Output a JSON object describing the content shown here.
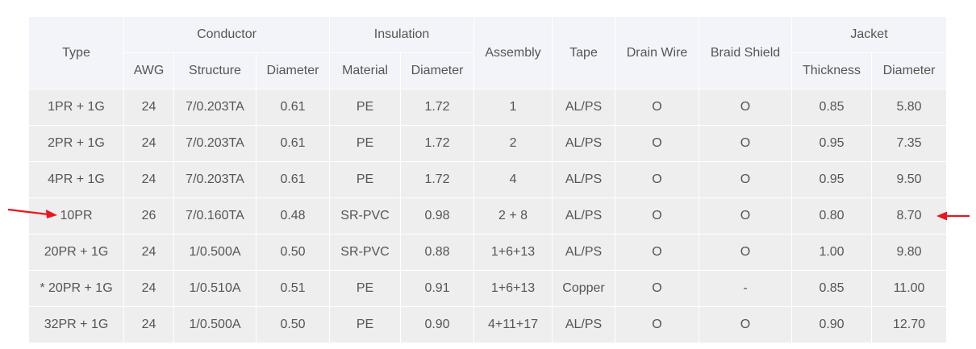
{
  "header": {
    "type": "Type",
    "conductor": "Conductor",
    "insulation": "Insulation",
    "assembly": "Assembly",
    "tape": "Tape",
    "drain_wire": "Drain Wire",
    "braid_shield": "Braid Shield",
    "jacket": "Jacket",
    "sub": {
      "awg": "AWG",
      "structure": "Structure",
      "cond_diameter": "Diameter",
      "material": "Material",
      "ins_diameter": "Diameter",
      "thickness": "Thickness",
      "jacket_diameter": "Diameter"
    }
  },
  "rows": [
    [
      "1PR + 1G",
      "24",
      "7/0.203TA",
      "0.61",
      "PE",
      "1.72",
      "1",
      "AL/PS",
      "O",
      "O",
      "0.85",
      "5.80"
    ],
    [
      "2PR + 1G",
      "24",
      "7/0.203TA",
      "0.61",
      "PE",
      "1.72",
      "2",
      "AL/PS",
      "O",
      "O",
      "0.95",
      "7.35"
    ],
    [
      "4PR + 1G",
      "24",
      "7/0.203TA",
      "0.61",
      "PE",
      "1.72",
      "4",
      "AL/PS",
      "O",
      "O",
      "0.95",
      "9.50"
    ],
    [
      "10PR",
      "26",
      "7/0.160TA",
      "0.48",
      "SR-PVC",
      "0.98",
      "2 + 8",
      "AL/PS",
      "O",
      "O",
      "0.80",
      "8.70"
    ],
    [
      "20PR + 1G",
      "24",
      "1/0.500A",
      "0.50",
      "SR-PVC",
      "0.88",
      "1+6+13",
      "AL/PS",
      "O",
      "O",
      "1.00",
      "9.80"
    ],
    [
      "* 20PR + 1G",
      "24",
      "1/0.510A",
      "0.51",
      "PE",
      "0.91",
      "1+6+13",
      "Copper",
      "O",
      "-",
      "0.85",
      "11.00"
    ],
    [
      "32PR + 1G",
      "24",
      "1/0.500A",
      "0.50",
      "PE",
      "0.90",
      "4+11+17",
      "AL/PS",
      "O",
      "O",
      "0.90",
      "12.70"
    ]
  ],
  "colors": {
    "header_bg": "#f3f4f9",
    "row_bg": "#eeeeee",
    "text": "#555555",
    "arrow": "#e8161e"
  },
  "annotations": {
    "left_arrow_icon": "arrow-right-icon",
    "right_arrow_icon": "arrow-left-icon",
    "highlighted_row": "10PR"
  }
}
